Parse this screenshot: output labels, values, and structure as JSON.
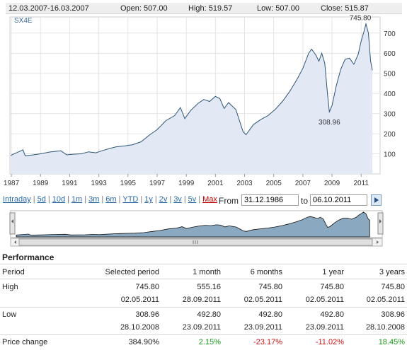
{
  "header": {
    "date_range": "12.03.2007-16.03.2007",
    "open": "Open: 507.00",
    "high": "High: 519.57",
    "low": "Low: 507.00",
    "close": "Close: 515.87"
  },
  "chart_data": {
    "type": "area",
    "series_label": "SX4E",
    "ylim": [
      0,
      780
    ],
    "xlim": [
      1986.9,
      2012.3
    ],
    "y_ticks": [
      100,
      200,
      300,
      400,
      500,
      600,
      700
    ],
    "x_ticks": [
      "1987",
      "1989",
      "1991",
      "1993",
      "1995",
      "1997",
      "1999",
      "2001",
      "2003",
      "2005",
      "2007",
      "2009",
      "2011"
    ],
    "annotations": [
      {
        "label": "745.80",
        "x": 2011.33,
        "y": 745.8
      },
      {
        "label": "308.96",
        "x": 2008.82,
        "y": 308.96
      }
    ],
    "series": [
      {
        "values": [
          [
            1986.95,
            92
          ],
          [
            1987.5,
            110
          ],
          [
            1987.8,
            120
          ],
          [
            1987.95,
            90
          ],
          [
            1988.5,
            95
          ],
          [
            1989.0,
            100
          ],
          [
            1989.7,
            110
          ],
          [
            1990.4,
            115
          ],
          [
            1990.8,
            95
          ],
          [
            1991.2,
            98
          ],
          [
            1991.8,
            100
          ],
          [
            1992.3,
            110
          ],
          [
            1992.8,
            105
          ],
          [
            1993.2,
            115
          ],
          [
            1993.8,
            128
          ],
          [
            1994.2,
            135
          ],
          [
            1994.8,
            140
          ],
          [
            1995.3,
            145
          ],
          [
            1995.9,
            160
          ],
          [
            1996.5,
            195
          ],
          [
            1997.0,
            220
          ],
          [
            1997.6,
            265
          ],
          [
            1998.2,
            290
          ],
          [
            1998.6,
            330
          ],
          [
            1998.9,
            275
          ],
          [
            1999.3,
            315
          ],
          [
            1999.8,
            350
          ],
          [
            2000.2,
            370
          ],
          [
            2000.6,
            360
          ],
          [
            2001.0,
            385
          ],
          [
            2001.3,
            375
          ],
          [
            2001.6,
            325
          ],
          [
            2001.9,
            355
          ],
          [
            2002.4,
            320
          ],
          [
            2002.9,
            210
          ],
          [
            2003.1,
            195
          ],
          [
            2003.6,
            245
          ],
          [
            2004.1,
            270
          ],
          [
            2004.6,
            290
          ],
          [
            2005.1,
            320
          ],
          [
            2005.6,
            360
          ],
          [
            2006.1,
            410
          ],
          [
            2006.6,
            470
          ],
          [
            2007.0,
            525
          ],
          [
            2007.4,
            600
          ],
          [
            2007.6,
            620
          ],
          [
            2007.9,
            590
          ],
          [
            2008.1,
            560
          ],
          [
            2008.3,
            600
          ],
          [
            2008.5,
            550
          ],
          [
            2008.7,
            390
          ],
          [
            2008.82,
            308.96
          ],
          [
            2009.0,
            340
          ],
          [
            2009.3,
            440
          ],
          [
            2009.6,
            520
          ],
          [
            2009.9,
            570
          ],
          [
            2010.2,
            575
          ],
          [
            2010.5,
            545
          ],
          [
            2010.8,
            595
          ],
          [
            2011.0,
            660
          ],
          [
            2011.2,
            710
          ],
          [
            2011.33,
            745.8
          ],
          [
            2011.5,
            700
          ],
          [
            2011.65,
            560
          ],
          [
            2011.77,
            515
          ]
        ]
      }
    ]
  },
  "nav": {
    "periods": [
      "Intraday",
      "5d",
      "10d",
      "1m",
      "3m",
      "6m",
      "YTD",
      "1y",
      "2v",
      "3v",
      "5v"
    ],
    "max_label": "Max",
    "from_label": "From",
    "from_value": "31.12.1986",
    "to_label": "to",
    "to_value": "06.10.2011"
  },
  "performance": {
    "title": "Performance",
    "headers": [
      "Period",
      "Selected period",
      "1 month",
      "6 months",
      "1 year",
      "3 years"
    ],
    "high_label": "High",
    "high": [
      "745.80",
      "555.16",
      "745.80",
      "745.80",
      "745.80"
    ],
    "high_dates": [
      "02.05.2011",
      "28.09.2011",
      "02.05.2011",
      "02.05.2011",
      "02.05.2011"
    ],
    "low_label": "Low",
    "low": [
      "308.96",
      "492.80",
      "492.80",
      "492.80",
      "308.96"
    ],
    "low_dates": [
      "28.10.2008",
      "23.09.2011",
      "23.09.2011",
      "23.09.2011",
      "28.10.2008"
    ],
    "change_label": "Price change",
    "change": [
      "384.90%",
      "2.15%",
      "-23.17%",
      "-11.02%",
      "18.45%"
    ]
  },
  "colors": {
    "line": "#2d5577",
    "area": "#e2e8f4",
    "grid": "#e4e4e4",
    "nav_fill": "#8aa8c0",
    "positive": "#1a9a1a",
    "negative": "#d01010"
  }
}
